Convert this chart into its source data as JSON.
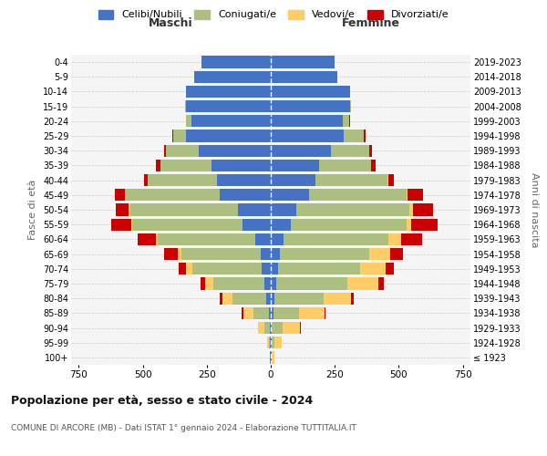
{
  "age_groups": [
    "100+",
    "95-99",
    "90-94",
    "85-89",
    "80-84",
    "75-79",
    "70-74",
    "65-69",
    "60-64",
    "55-59",
    "50-54",
    "45-49",
    "40-44",
    "35-39",
    "30-34",
    "25-29",
    "20-24",
    "15-19",
    "10-14",
    "5-9",
    "0-4"
  ],
  "birth_years": [
    "≤ 1923",
    "1924-1928",
    "1929-1933",
    "1934-1938",
    "1939-1943",
    "1944-1948",
    "1949-1953",
    "1954-1958",
    "1959-1963",
    "1964-1968",
    "1969-1973",
    "1974-1978",
    "1979-1983",
    "1984-1988",
    "1989-1993",
    "1994-1998",
    "1999-2003",
    "2004-2008",
    "2009-2013",
    "2014-2018",
    "2019-2023"
  ],
  "colors": {
    "celibi": "#4472C4",
    "coniugati": "#ADBF7E",
    "vedovi": "#FFCC66",
    "divorziati": "#CC0000"
  },
  "maschi": {
    "celibi": [
      2,
      3,
      5,
      8,
      18,
      25,
      35,
      40,
      60,
      110,
      130,
      200,
      210,
      230,
      280,
      330,
      310,
      330,
      330,
      300,
      270
    ],
    "coniugati": [
      0,
      5,
      20,
      60,
      130,
      200,
      270,
      310,
      380,
      430,
      420,
      370,
      270,
      200,
      130,
      50,
      20,
      5,
      0,
      0,
      0
    ],
    "vedovi": [
      2,
      8,
      25,
      40,
      40,
      30,
      25,
      15,
      10,
      5,
      5,
      0,
      0,
      0,
      0,
      0,
      0,
      0,
      0,
      0,
      0
    ],
    "divorziati": [
      0,
      0,
      0,
      5,
      10,
      20,
      30,
      50,
      70,
      80,
      50,
      40,
      15,
      20,
      5,
      5,
      0,
      0,
      0,
      0,
      0
    ]
  },
  "femmine": {
    "celibi": [
      2,
      3,
      5,
      10,
      15,
      20,
      30,
      35,
      50,
      80,
      100,
      150,
      175,
      190,
      235,
      285,
      280,
      310,
      310,
      260,
      250
    ],
    "coniugati": [
      2,
      10,
      40,
      100,
      190,
      280,
      320,
      350,
      410,
      450,
      440,
      380,
      280,
      200,
      150,
      80,
      25,
      5,
      0,
      0,
      0
    ],
    "vedovi": [
      10,
      30,
      70,
      100,
      110,
      120,
      100,
      80,
      50,
      20,
      15,
      5,
      5,
      0,
      0,
      0,
      0,
      0,
      0,
      0,
      0
    ],
    "divorziati": [
      0,
      0,
      2,
      5,
      10,
      20,
      30,
      50,
      80,
      100,
      80,
      60,
      20,
      20,
      10,
      5,
      5,
      0,
      0,
      0,
      0
    ]
  },
  "xlim": 780,
  "title": "Popolazione per età, sesso e stato civile - 2024",
  "subtitle": "COMUNE DI ARCORE (MB) - Dati ISTAT 1° gennaio 2024 - Elaborazione TUTTITALIA.IT",
  "ylabel_left": "Fasce di età",
  "ylabel_right": "Anni di nascita",
  "maschi_label": "Maschi",
  "femmine_label": "Femmine",
  "legend_labels": [
    "Celibi/Nubili",
    "Coniugati/e",
    "Vedovi/e",
    "Divorziati/e"
  ],
  "bg_color": "#ffffff",
  "plot_bg_color": "#f5f5f5",
  "grid_color": "#cccccc"
}
